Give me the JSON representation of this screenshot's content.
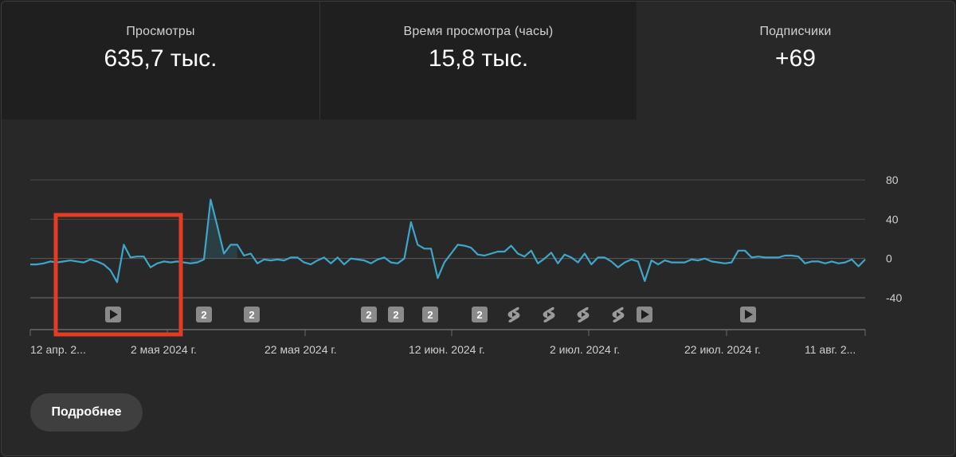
{
  "metrics": [
    {
      "label": "Просмотры",
      "value": "635,7 тыс."
    },
    {
      "label": "Время просмотра (часы)",
      "value": "15,8 тыс."
    },
    {
      "label": "Подписчики",
      "value": "+69"
    }
  ],
  "more_button": "Подробнее",
  "colors": {
    "line": "#3ea6c9",
    "grid": "#4a4a4a",
    "highlight_box": "#e53a24",
    "marker_bg": "#8a8a8a",
    "background": "#282828"
  },
  "chart_data": {
    "type": "line",
    "ylim": [
      -40,
      80
    ],
    "y_ticks": [
      "80",
      "40",
      "0",
      "-40"
    ],
    "x_ticks": [
      "12 апр. 2...",
      "2 мая 2024 г.",
      "22 мая 2024 г.",
      "12 июн. 2024 г.",
      "2 июл. 2024 г.",
      "22 июл. 2024 г.",
      "11 авг. 2..."
    ],
    "series": [
      {
        "values": [
          -6,
          -6,
          -5,
          -3,
          -4,
          -3,
          -2,
          -3,
          -4,
          -1,
          -3,
          -6,
          -12,
          -24,
          14,
          1,
          2,
          2,
          -9,
          -5,
          -3,
          -4,
          -3,
          -4,
          -5,
          -4,
          -1,
          60,
          33,
          5,
          14,
          14,
          3,
          5,
          -5,
          -1,
          -2,
          -1,
          -2,
          1,
          1,
          -4,
          -6,
          -2,
          1,
          -5,
          1,
          -6,
          0,
          -1,
          -2,
          -5,
          -1,
          1,
          -4,
          -5,
          0,
          37,
          14,
          10,
          10,
          -20,
          -4,
          5,
          14,
          13,
          11,
          4,
          3,
          5,
          7,
          7,
          13,
          5,
          2,
          8,
          -5,
          0,
          6,
          -5,
          4,
          1,
          -4,
          5,
          -6,
          1,
          1,
          -3,
          -9,
          -4,
          -1,
          -3,
          -23,
          -2,
          -6,
          -2,
          -4,
          -4,
          -4,
          -1,
          -2,
          0,
          -3,
          -4,
          -5,
          -4,
          8,
          8,
          1,
          2,
          1,
          1,
          1,
          3,
          3,
          2,
          -5,
          -3,
          -3,
          -5,
          -3,
          -5,
          -4,
          -1,
          -8,
          -1
        ]
      }
    ],
    "markers": [
      {
        "type": "video"
      },
      {
        "type": "number",
        "label": "2"
      },
      {
        "type": "number",
        "label": "2"
      },
      {
        "type": "number",
        "label": "2"
      },
      {
        "type": "number",
        "label": "2"
      },
      {
        "type": "number",
        "label": "2"
      },
      {
        "type": "number",
        "label": "2"
      },
      {
        "type": "shorts"
      },
      {
        "type": "shorts"
      },
      {
        "type": "shorts"
      },
      {
        "type": "shorts"
      },
      {
        "type": "video"
      },
      {
        "type": "video"
      }
    ]
  }
}
